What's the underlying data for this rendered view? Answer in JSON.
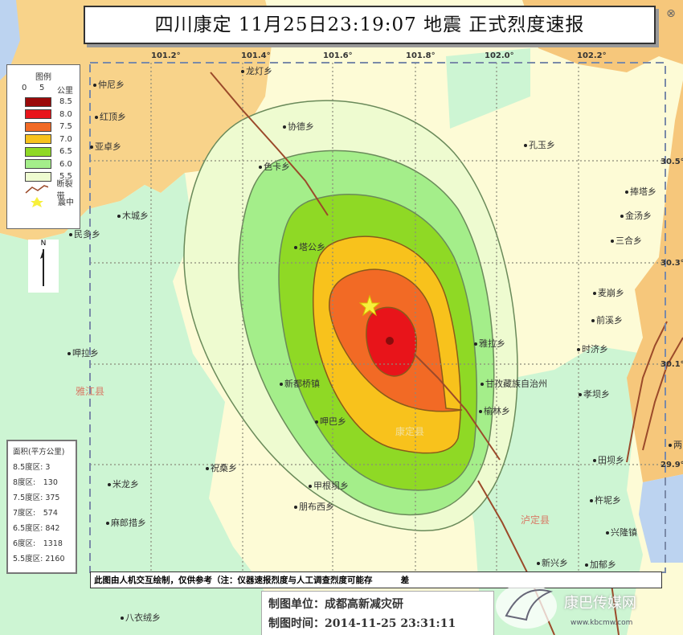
{
  "title": "四川康定 11月25日23:19:07 地震 正式烈度速报",
  "longitude_ticks": [
    "101.2°",
    "101.4°",
    "101.6°",
    "101.8°",
    "102.0°",
    "102.2°"
  ],
  "latitude_ticks": [
    "30.5°",
    "30.3°",
    "30.1°",
    "29.9°"
  ],
  "legend": {
    "heading": "图例",
    "scale_0": "0",
    "scale_5": "5",
    "scale_unit": "公里",
    "intensity_levels": [
      {
        "label": "8.5",
        "color": "#9b0a0a"
      },
      {
        "label": "8.0",
        "color": "#e8141a"
      },
      {
        "label": "7.5",
        "color": "#f26a25"
      },
      {
        "label": "7.0",
        "color": "#f8c21c"
      },
      {
        "label": "6.5",
        "color": "#8fd925"
      },
      {
        "label": "6.0",
        "color": "#a4ee8a"
      },
      {
        "label": "5.5",
        "color": "#eefbd0"
      }
    ],
    "fault_label": "断裂带",
    "epicenter_label": "震中"
  },
  "north_label": "N",
  "area_table": {
    "heading": "面积(平方公里)",
    "rows": [
      "8.5度区: 3",
      "8度区:　130",
      "7.5度区: 375",
      "7度区:　574",
      "6.5度区: 842",
      "6度区:　1318",
      "5.5度区: 2160"
    ]
  },
  "places": [
    "仲尼乡",
    "红顶乡",
    "亚卓乡",
    "龙灯乡",
    "协德乡",
    "色卡乡",
    "木城乡",
    "民多乡",
    "塔公乡",
    "孔玉乡",
    "捧塔乡",
    "金汤乡",
    "三合乡",
    "麦崩乡",
    "前溪乡",
    "时济乡",
    "雅拉乡",
    "甘孜藏族自治州",
    "榆林乡",
    "孝坝乡",
    "田坝乡",
    "杵坭乡",
    "兴隆镇",
    "新兴乡",
    "加郁乡",
    "呷拉乡",
    "新都桥镇",
    "呷巴乡",
    "祝桑乡",
    "米龙乡",
    "甲根坝乡",
    "朋布西乡",
    "麻郎措乡",
    "八衣绒乡",
    "两"
  ],
  "counties": [
    "雅江县",
    "康定县",
    "泸定县"
  ],
  "note": "此图由人机交互绘制，仅供参考（注：仪器速报烈度与人工调查烈度可能存 　　　差",
  "credit": {
    "unit": "制图单位：成都高新减灾研",
    "time": "制图时间：2014-11-25 23:31:11"
  },
  "watermark": {
    "name": "康巴传媒网",
    "url": "www.kbcmw.com"
  },
  "colors": {
    "fault": "#9b4a2a",
    "epicenter_star": "#f7f03c",
    "orange_region": "#f8d38a",
    "green_region": "#cdf5d3",
    "cream_region": "#fdfbd6",
    "water": "#bcd3f0"
  }
}
